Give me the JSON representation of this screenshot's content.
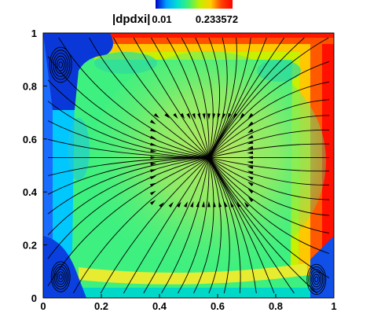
{
  "chart_data": {
    "type": "heatmap",
    "variable": "|dpdxi|",
    "colorbar": {
      "min_label": "0.01",
      "max_label": "0.233572",
      "colors": [
        "#0000c8",
        "#00a0ff",
        "#00e0d0",
        "#40f070",
        "#c0f000",
        "#ffd000",
        "#ff4000",
        "#ff0000"
      ]
    },
    "x_ticks": [
      "0",
      "0.2",
      "0.4",
      "0.6",
      "0.8",
      "1"
    ],
    "y_ticks": [
      "0",
      "0.2",
      "0.4",
      "0.6",
      "0.8",
      "1"
    ],
    "x_values": [
      0,
      0.2,
      0.4,
      0.6,
      0.8,
      1
    ],
    "y_values": [
      0,
      0.2,
      0.4,
      0.6,
      0.8,
      1
    ],
    "xlim": [
      0,
      1
    ],
    "ylim": [
      0,
      1
    ],
    "streamline_center": [
      0.57,
      0.53
    ],
    "colors": {
      "background_field": "#3ef080",
      "center_field": "#a8e860",
      "boundary_high": "#ff1a00",
      "boundary_low": "#0a30d8",
      "streamlines": "#000000"
    }
  }
}
